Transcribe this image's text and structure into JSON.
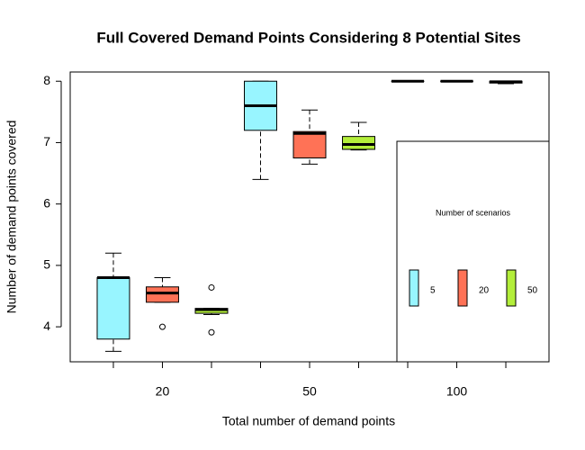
{
  "chart_data": {
    "type": "boxplot",
    "title": "Full Covered Demand Points Considering 8 Potential Sites",
    "x_label": "Total number of demand points",
    "y_label": "Number of demand points covered",
    "categories": [
      null,
      "20",
      null,
      null,
      "50",
      null,
      null,
      "100",
      null
    ],
    "ylim": [
      3.43,
      8.15
    ],
    "yticks": [
      4,
      5,
      6,
      7,
      8
    ],
    "legend_title": "Number of scenarios",
    "legend_position": "bottomright",
    "series": [
      {
        "name": "5",
        "color": "#98f5ff",
        "values": [
          {
            "low": 3.6,
            "q1": 3.8,
            "median": 4.8,
            "q3": 4.8,
            "high": 5.2,
            "outliers": []
          },
          {
            "low": 6.4,
            "q1": 7.2,
            "median": 7.6,
            "q3": 8,
            "high": 8,
            "outliers": []
          },
          {
            "low": 8,
            "q1": 8,
            "median": 8,
            "q3": 8,
            "high": 8,
            "outliers": []
          }
        ]
      },
      {
        "name": "20",
        "color": "#ff7256",
        "values": [
          {
            "low": 4.4,
            "q1": 4.4,
            "median": 4.55,
            "q3": 4.65,
            "high": 4.8,
            "outliers": [
              4.0
            ]
          },
          {
            "low": 6.65,
            "q1": 6.75,
            "median": 7.15,
            "q3": 7.18,
            "high": 7.53,
            "outliers": []
          },
          {
            "low": 8,
            "q1": 8,
            "median": 8,
            "q3": 8,
            "high": 8,
            "outliers": []
          }
        ]
      },
      {
        "name": "50",
        "color": "#b3ee3a",
        "values": [
          {
            "low": 4.2,
            "q1": 4.22,
            "median": 4.28,
            "q3": 4.3,
            "high": 4.3,
            "outliers": [
              4.64,
              3.91
            ]
          },
          {
            "low": 6.88,
            "q1": 6.89,
            "median": 6.97,
            "q3": 7.1,
            "high": 7.33,
            "outliers": []
          },
          {
            "low": 7.96,
            "q1": 7.97,
            "median": 7.99,
            "q3": 8,
            "high": 8,
            "outliers": []
          }
        ]
      }
    ]
  }
}
